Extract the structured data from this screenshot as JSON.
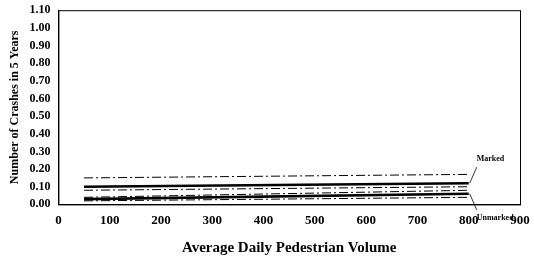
{
  "chart_data": {
    "type": "line",
    "x_label": "Average Daily Pedestrian Volume",
    "y_label": "Number of Crashes in 5 Years",
    "x": [
      50,
      800
    ],
    "series": [
      {
        "name": "Marked",
        "color": "#000000",
        "line_style": "solid",
        "marker": "none",
        "values": [
          0.1,
          0.12
        ]
      },
      {
        "color": "#000000",
        "line_style": "dashdot",
        "marker": "none",
        "values": [
          0.15,
          0.17
        ]
      },
      {
        "color": "#000000",
        "line_style": "dashdot",
        "marker": "none",
        "values": [
          0.08,
          0.1
        ]
      },
      {
        "name": "Unmarked",
        "color": "#000000",
        "line_style": "solid",
        "marker": "none",
        "values": [
          0.03,
          0.06
        ]
      },
      {
        "color": "#000000",
        "line_style": "dashdot",
        "marker": "none",
        "values": [
          0.04,
          0.08
        ]
      },
      {
        "color": "#000000",
        "line_style": "dashdot",
        "marker": "none",
        "values": [
          0.02,
          0.04
        ]
      }
    ],
    "xlim": [
      0,
      900
    ],
    "xticks": [
      0,
      100,
      200,
      300,
      400,
      500,
      600,
      700,
      800,
      900
    ],
    "ylim": [
      0,
      1.1
    ],
    "yticks": [
      {
        "value": 0,
        "label": "0.00"
      },
      {
        "value": 0.1,
        "label": "0.10"
      },
      {
        "value": 0.2,
        "label": "0.20"
      },
      {
        "value": 0.3,
        "label": "0.30"
      },
      {
        "value": 0.4,
        "label": "0.40"
      },
      {
        "value": 0.5,
        "label": "0.50"
      },
      {
        "value": 0.6,
        "label": "0.60"
      },
      {
        "value": 0.7,
        "label": "0.70"
      },
      {
        "value": 0.8,
        "label": "0.80"
      },
      {
        "value": 0.9,
        "label": "0.90"
      },
      {
        "value": 1.0,
        "label": "1.00"
      },
      {
        "value": 1.1,
        "label": "1.10"
      }
    ],
    "grid": false
  }
}
